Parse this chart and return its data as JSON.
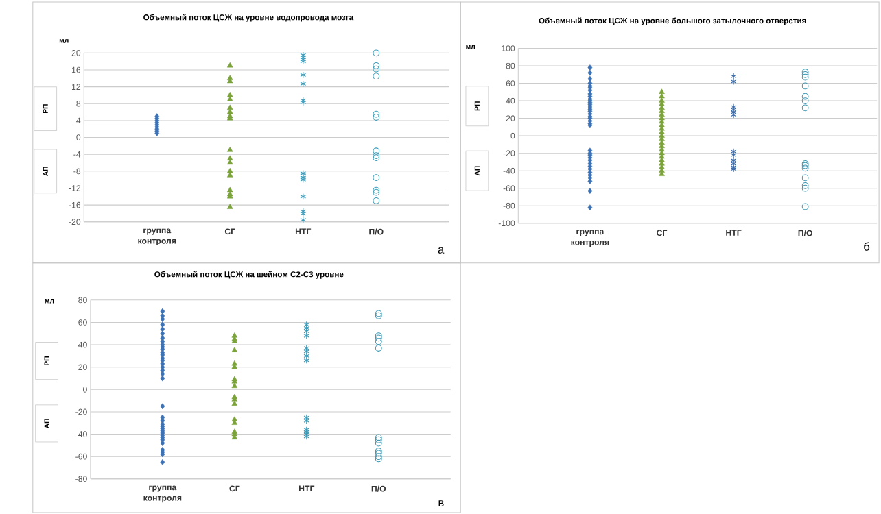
{
  "chart_data": [
    {
      "type": "scatter",
      "title": "Объемный поток ЦСЖ  на уровне водопровода  мозга",
      "ylabel": "мл",
      "categories": [
        "группа контроля",
        "СГ",
        "НТГ",
        "П/О"
      ],
      "ylim": [
        -20,
        20
      ],
      "yticks": [
        -20,
        -16,
        -12,
        -8,
        -4,
        0,
        4,
        8,
        12,
        16,
        20
      ],
      "grid": "y",
      "series": [
        {
          "color": "#3d72b4",
          "marker": "diamond",
          "x": [
            "группа контроля",
            "группа контроля",
            "группа контроля",
            "группа контроля",
            "группа контроля",
            "группа контроля",
            "группа контроля",
            "группа контроля",
            "группа контроля"
          ],
          "values": [
            1,
            1.5,
            2,
            2.5,
            3,
            3.5,
            4,
            4.5,
            5
          ]
        },
        {
          "color": "#7ba33a",
          "marker": "triangle",
          "x": [
            "СГ",
            "СГ",
            "СГ",
            "СГ",
            "СГ",
            "СГ",
            "СГ",
            "СГ",
            "СГ",
            "СГ",
            "СГ",
            "СГ",
            "СГ",
            "СГ",
            "СГ",
            "СГ",
            "СГ",
            "СГ"
          ],
          "values": [
            17,
            14,
            13.3,
            10,
            9,
            7,
            6,
            5,
            4.5,
            -3,
            -5,
            -6,
            -8,
            -9,
            -12.5,
            -13.5,
            -14,
            -16.5
          ]
        },
        {
          "color": "#3c9ab8",
          "marker": "cross",
          "x": [
            "НТГ",
            "НТГ",
            "НТГ",
            "НТГ",
            "НТГ",
            "НТГ",
            "НТГ",
            "НТГ",
            "НТГ",
            "НТГ",
            "НТГ",
            "НТГ",
            "НТГ",
            "НТГ",
            "НТГ",
            "НТГ"
          ],
          "values": [
            19.5,
            19,
            18.5,
            18,
            14.8,
            12.7,
            8.8,
            8.3,
            -8.5,
            -9,
            -9.5,
            -10,
            -14,
            -17.5,
            -19.5,
            -18
          ]
        },
        {
          "color": "#3a98b4",
          "marker": "circle",
          "x": [
            "П/О",
            "П/О",
            "П/О",
            "П/О",
            "П/О",
            "П/О",
            "П/О",
            "П/О",
            "П/О",
            "П/О",
            "П/О",
            "П/О",
            "П/О"
          ],
          "values": [
            20,
            17,
            16.2,
            14.5,
            5.5,
            4.8,
            -3.2,
            -4.3,
            -4.8,
            -9.5,
            -12.5,
            -13,
            -15
          ]
        }
      ],
      "annotations": [
        "РП",
        "АП",
        "а"
      ]
    },
    {
      "type": "scatter",
      "title": "Объемный поток ЦСЖ на уровне большого затылочного отверстия",
      "ylabel": "мл",
      "categories": [
        "группа контроля",
        "СГ",
        "НТГ",
        "П/О"
      ],
      "ylim": [
        -100,
        100
      ],
      "yticks": [
        -100,
        -80,
        -60,
        -40,
        -20,
        0,
        20,
        40,
        60,
        80,
        100
      ],
      "grid": "y",
      "series": [
        {
          "color": "#3d72b4",
          "marker": "diamond",
          "x": [
            "группа контроля",
            "группа контроля",
            "группа контроля",
            "группа контроля",
            "группа контроля",
            "группа контроля",
            "группа контроля",
            "группа контроля",
            "группа контроля",
            "группа контроля",
            "группа контроля",
            "группа контроля",
            "группа контроля",
            "группа контроля",
            "группа контроля",
            "группа контроля",
            "группа контроля",
            "группа контроля",
            "группа контроля",
            "группа контроля",
            "группа контроля",
            "группа контроля",
            "группа контроля",
            "группа контроля",
            "группа контроля",
            "группа контроля",
            "группа контроля",
            "группа контроля",
            "группа контроля",
            "группа контроля",
            "группа контроля",
            "группа контроля",
            "группа контроля",
            "группа контроля",
            "группа контроля",
            "группа контроля",
            "группа контроля"
          ],
          "values": [
            78,
            72,
            65,
            60,
            57,
            55,
            52,
            48,
            45,
            42,
            40,
            38,
            36,
            34,
            32,
            30,
            28,
            25,
            22,
            20,
            17,
            14,
            12,
            -17,
            -20,
            -22,
            -25,
            -28,
            -32,
            -35,
            -38,
            -42,
            -45,
            -48,
            -52,
            -63,
            -82
          ]
        },
        {
          "color": "#7ba33a",
          "marker": "triangle",
          "x": [
            "СГ",
            "СГ",
            "СГ",
            "СГ",
            "СГ",
            "СГ",
            "СГ",
            "СГ",
            "СГ",
            "СГ",
            "СГ",
            "СГ",
            "СГ",
            "СГ",
            "СГ",
            "СГ",
            "СГ",
            "СГ",
            "СГ",
            "СГ",
            "СГ",
            "СГ",
            "СГ",
            "СГ"
          ],
          "values": [
            50,
            45,
            40,
            36,
            32,
            28,
            24,
            20,
            16,
            12,
            8,
            4,
            0,
            -4,
            -8,
            -12,
            -16,
            -20,
            -24,
            -28,
            -32,
            -36,
            -40,
            -44
          ]
        },
        {
          "color": "#3b6aa6",
          "marker": "cross",
          "x": [
            "НТГ",
            "НТГ",
            "НТГ",
            "НТГ",
            "НТГ",
            "НТГ",
            "НТГ",
            "НТГ",
            "НТГ",
            "НТГ",
            "НТГ",
            "НТГ"
          ],
          "values": [
            68,
            62,
            33,
            30,
            27,
            24,
            -18,
            -22,
            -28,
            -32,
            -36,
            -38
          ]
        },
        {
          "color": "#3a98b4",
          "marker": "circle",
          "x": [
            "П/О",
            "П/О",
            "П/О",
            "П/О",
            "П/О",
            "П/О",
            "П/О",
            "П/О",
            "П/О",
            "П/О",
            "П/О",
            "П/О",
            "П/О",
            "П/О"
          ],
          "values": [
            73,
            70,
            67,
            57,
            45,
            40,
            32,
            -32,
            -34,
            -37,
            -48,
            -57,
            -60,
            -81
          ]
        }
      ],
      "annotations": [
        "РП",
        "АП",
        "б"
      ]
    },
    {
      "type": "scatter",
      "title": "Объемный поток ЦСЖ на шейном С2-С3 уровне",
      "ylabel": "мл",
      "categories": [
        "группа контроля",
        "СГ",
        "НТГ",
        "П/О"
      ],
      "ylim": [
        -80,
        80
      ],
      "yticks": [
        -80,
        -60,
        -40,
        -20,
        0,
        20,
        40,
        60,
        80
      ],
      "grid": "y",
      "series": [
        {
          "color": "#3d72b4",
          "marker": "diamond",
          "x": [
            "группа контроля",
            "группа контроля",
            "группа контроля",
            "группа контроля",
            "группа контроля",
            "группа контроля",
            "группа контроля",
            "группа контроля",
            "группа контроля",
            "группа контроля",
            "группа контроля",
            "группа контроля",
            "группа контроля",
            "группа контроля",
            "группа контроля",
            "группа контроля",
            "группа контроля",
            "группа контроля",
            "группа контроля",
            "группа контроля",
            "группа контроля",
            "группа контроля",
            "группа контроля",
            "группа контроля",
            "группа контроля",
            "группа контроля",
            "группа контроля",
            "группа контроля",
            "группа контроля",
            "группа контроля",
            "группа контроля",
            "группа контроля",
            "группа контроля",
            "группа контроля",
            "группа контроля",
            "группа контроля"
          ],
          "values": [
            70,
            66,
            63,
            58,
            54,
            50,
            46,
            43,
            40,
            38,
            36,
            33,
            31,
            28,
            26,
            23,
            20,
            17,
            14,
            10,
            -15,
            -25,
            -28,
            -31,
            -33,
            -35,
            -37,
            -39,
            -41,
            -43,
            -45,
            -48,
            -54,
            -56,
            -58,
            -65
          ]
        },
        {
          "color": "#7ba33a",
          "marker": "triangle",
          "x": [
            "СГ",
            "СГ",
            "СГ",
            "СГ",
            "СГ",
            "СГ",
            "СГ",
            "СГ",
            "СГ",
            "СГ",
            "СГ",
            "СГ",
            "СГ",
            "СГ",
            "СГ",
            "СГ",
            "СГ"
          ],
          "values": [
            48,
            45,
            43,
            35,
            23,
            20,
            9,
            7,
            3,
            -7,
            -9,
            -13,
            -27,
            -30,
            -38,
            -40,
            -43
          ]
        },
        {
          "color": "#3c9ab8",
          "marker": "cross",
          "x": [
            "НТГ",
            "НТГ",
            "НТГ",
            "НТГ",
            "НТГ",
            "НТГ",
            "НТГ",
            "НТГ",
            "НТГ",
            "НТГ",
            "НТГ",
            "НТГ",
            "НТГ",
            "НТГ"
          ],
          "values": [
            58,
            55,
            52,
            48,
            37,
            34,
            30,
            26,
            -25,
            -28,
            -36,
            -38,
            -40,
            -42
          ]
        },
        {
          "color": "#3a98b4",
          "marker": "circle",
          "x": [
            "П/О",
            "П/О",
            "П/О",
            "П/О",
            "П/О",
            "П/О",
            "П/О",
            "П/О",
            "П/О",
            "П/О",
            "П/О",
            "П/О",
            "П/О"
          ],
          "values": [
            68,
            66,
            48,
            46,
            43,
            37,
            -43,
            -45,
            -48,
            -55,
            -57,
            -60,
            -62
          ]
        }
      ],
      "annotations": [
        "РП",
        "АП",
        "в"
      ]
    }
  ]
}
